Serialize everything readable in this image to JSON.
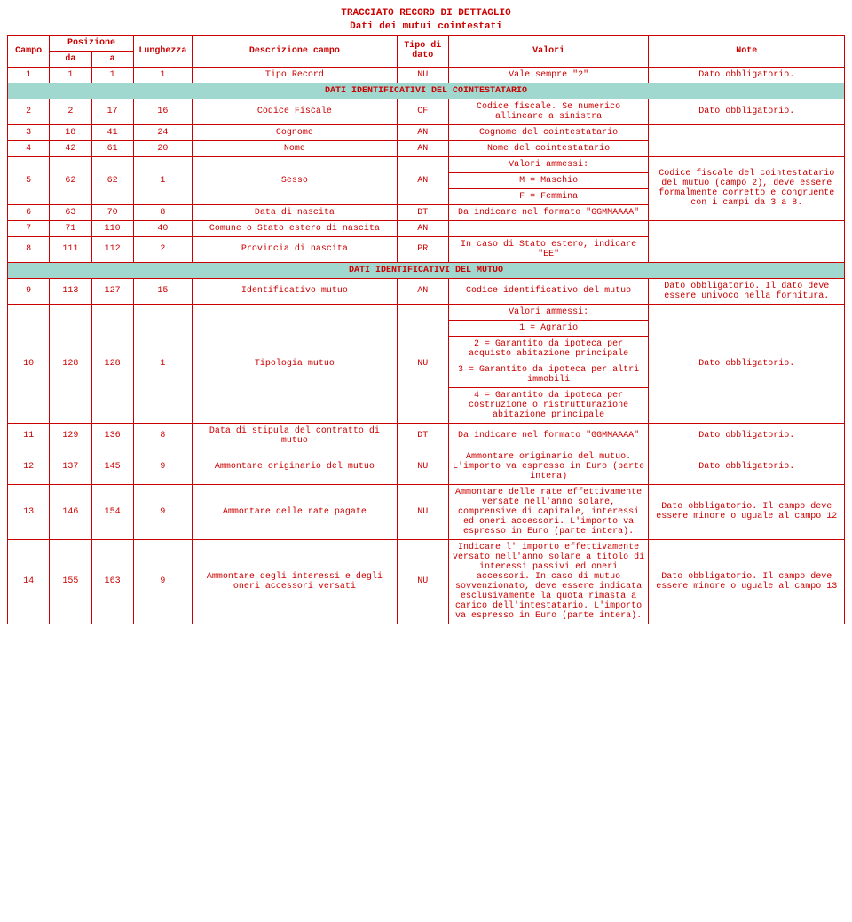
{
  "doc": {
    "title1": "TRACCIATO RECORD DI DETTAGLIO",
    "title2": "Dati dei mutui cointestati"
  },
  "headers": {
    "campo": "Campo",
    "posizione": "Posizione",
    "da": "da",
    "a": "a",
    "lunghezza": "Lunghezza",
    "descrizione": "Descrizione campo",
    "tipo": "Tipo di dato",
    "valori": "Valori",
    "note": "Note"
  },
  "section1": "DATI IDENTIFICATIVI DEL COINTESTATARIO",
  "section2": "DATI IDENTIFICATIVI DEL MUTUO",
  "r1": {
    "c": "1",
    "da": "1",
    "a": "1",
    "l": "1",
    "d": "Tipo Record",
    "t": "NU",
    "v": "Vale sempre \"2\"",
    "n": "Dato obbligatorio."
  },
  "r2": {
    "c": "2",
    "da": "2",
    "a": "17",
    "l": "16",
    "d": "Codice Fiscale",
    "t": "CF",
    "v": "Codice fiscale. Se numerico allineare a sinistra",
    "n": "Dato obbligatorio."
  },
  "r3": {
    "c": "3",
    "da": "18",
    "a": "41",
    "l": "24",
    "d": "Cognome",
    "t": "AN",
    "v": "Cognome del cointestatario"
  },
  "r4": {
    "c": "4",
    "da": "42",
    "a": "61",
    "l": "20",
    "d": "Nome",
    "t": "AN",
    "v": "Nome del cointestatario"
  },
  "r5": {
    "c": "5",
    "da": "62",
    "a": "62",
    "l": "1",
    "d": "Sesso",
    "t": "AN",
    "v1": "Valori ammessi:",
    "v2": "M = Maschio",
    "v3": "F = Femmina"
  },
  "r6": {
    "c": "6",
    "da": "63",
    "a": "70",
    "l": "8",
    "d": "Data di nascita",
    "t": "DT",
    "v": "Da indicare nel formato \"GGMMAAAA\""
  },
  "note_3_7": "Codice fiscale del cointestatario del mutuo (campo 2), deve essere formalmente corretto e congruente con i campi da 3 a 8.",
  "r7": {
    "c": "7",
    "da": "71",
    "a": "110",
    "l": "40",
    "d": "Comune o Stato estero di nascita",
    "t": "AN"
  },
  "r8": {
    "c": "8",
    "da": "111",
    "a": "112",
    "l": "2",
    "d": "Provincia di nascita",
    "t": "PR",
    "v": "In caso di Stato estero, indicare \"EE\""
  },
  "r9": {
    "c": "9",
    "da": "113",
    "a": "127",
    "l": "15",
    "d": "Identificativo mutuo",
    "t": "AN",
    "v": "Codice identificativo del mutuo",
    "n": "Dato obbligatorio. Il dato deve essere univoco nella fornitura."
  },
  "r10": {
    "c": "10",
    "da": "128",
    "a": "128",
    "l": "1",
    "d": "Tipologia mutuo",
    "t": "NU",
    "v0": "Valori ammessi:",
    "v1": "1 = Agrario",
    "v2": "2 = Garantito da ipoteca per acquisto abitazione principale",
    "v3": "3 = Garantito da ipoteca per altri immobili",
    "v4": "4 = Garantito da ipoteca per costruzione o ristrutturazione abitazione principale",
    "n": "Dato obbligatorio."
  },
  "r11": {
    "c": "11",
    "da": "129",
    "a": "136",
    "l": "8",
    "d": "Data di stipula del contratto di mutuo",
    "t": "DT",
    "v": "Da indicare nel formato \"GGMMAAAA\"",
    "n": "Dato obbligatorio."
  },
  "r12": {
    "c": "12",
    "da": "137",
    "a": "145",
    "l": "9",
    "d": "Ammontare originario del mutuo",
    "t": "NU",
    "v": "Ammontare originario del mutuo.\nL'importo va espresso in Euro (parte intera)",
    "n": "Dato obbligatorio."
  },
  "r13": {
    "c": "13",
    "da": "146",
    "a": "154",
    "l": "9",
    "d": "Ammontare delle rate pagate",
    "t": "NU",
    "v": "Ammontare delle rate effettivamente versate nell'anno solare, comprensive di capitale, interessi ed oneri accessori.\nL'importo va espresso in Euro (parte intera).",
    "n": "Dato obbligatorio.\nIl campo deve essere minore o uguale al campo 12"
  },
  "r14": {
    "c": "14",
    "da": "155",
    "a": "163",
    "l": "9",
    "d": "Ammontare degli interessi e degli oneri accessori versati",
    "t": "NU",
    "v": "Indicare l' importo effettivamente versato nell'anno solare a titolo di interessi passivi ed oneri accessori.\nIn caso di mutuo sovvenzionato, deve essere indicata esclusivamente la quota rimasta a carico dell'intestatario.\nL'importo va espresso in Euro (parte intera).",
    "n": "Dato obbligatorio.\nIl campo deve essere minore o uguale al campo 13"
  }
}
